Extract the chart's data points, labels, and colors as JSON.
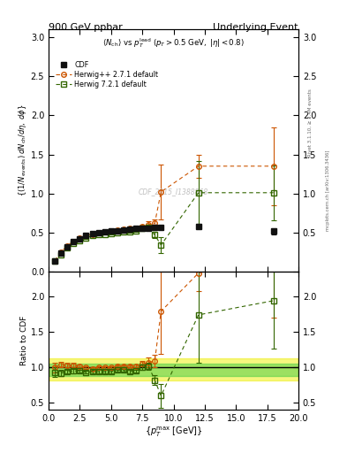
{
  "title_left": "900 GeV ppbar",
  "title_right": "Underlying Event",
  "watermark": "CDF_2015_I1388868",
  "rivet_label": "Rivet 3.1.10, ≥ 3.4M events",
  "arxiv_label": "mcplots.cern.ch [arXiv:1306.3436]",
  "ylabel_main": "((1/N_{events}) dN_{ch}/dη, dϕ)",
  "ylabel_ratio": "Ratio to CDF",
  "xlabel": "{p_{T}^{max} [GeV]}",
  "cdf_x": [
    0.5,
    1.0,
    1.5,
    2.0,
    2.5,
    3.0,
    3.5,
    4.0,
    4.5,
    5.0,
    5.5,
    6.0,
    6.5,
    7.0,
    7.5,
    8.0,
    8.5,
    9.0,
    12.0,
    18.0
  ],
  "cdf_y": [
    0.14,
    0.24,
    0.32,
    0.38,
    0.42,
    0.46,
    0.49,
    0.5,
    0.51,
    0.52,
    0.52,
    0.53,
    0.54,
    0.55,
    0.55,
    0.56,
    0.57,
    0.57,
    0.58,
    0.52
  ],
  "cdf_yerr_lo": [
    0.01,
    0.01,
    0.01,
    0.01,
    0.01,
    0.01,
    0.01,
    0.01,
    0.01,
    0.01,
    0.01,
    0.01,
    0.01,
    0.01,
    0.01,
    0.01,
    0.01,
    0.01,
    0.03,
    0.04
  ],
  "cdf_yerr_hi": [
    0.01,
    0.01,
    0.01,
    0.01,
    0.01,
    0.01,
    0.01,
    0.01,
    0.01,
    0.01,
    0.01,
    0.01,
    0.01,
    0.01,
    0.01,
    0.01,
    0.01,
    0.01,
    0.03,
    0.04
  ],
  "hpp_x": [
    0.5,
    1.0,
    1.5,
    2.0,
    2.5,
    3.0,
    3.5,
    4.0,
    4.5,
    5.0,
    5.5,
    6.0,
    6.5,
    7.0,
    7.5,
    8.0,
    8.5,
    9.0,
    12.0,
    18.0
  ],
  "hpp_y": [
    0.14,
    0.25,
    0.33,
    0.39,
    0.43,
    0.46,
    0.48,
    0.5,
    0.51,
    0.52,
    0.53,
    0.54,
    0.55,
    0.56,
    0.58,
    0.6,
    0.62,
    1.02,
    1.35,
    1.35
  ],
  "hpp_yerr_lo": [
    0.01,
    0.01,
    0.01,
    0.01,
    0.01,
    0.01,
    0.01,
    0.01,
    0.01,
    0.01,
    0.01,
    0.01,
    0.01,
    0.01,
    0.02,
    0.04,
    0.05,
    0.35,
    0.15,
    0.5
  ],
  "hpp_yerr_hi": [
    0.01,
    0.01,
    0.01,
    0.01,
    0.01,
    0.01,
    0.01,
    0.01,
    0.01,
    0.01,
    0.01,
    0.01,
    0.01,
    0.01,
    0.02,
    0.04,
    0.05,
    0.35,
    0.15,
    0.5
  ],
  "h72_x": [
    0.5,
    1.0,
    1.5,
    2.0,
    2.5,
    3.0,
    3.5,
    4.0,
    4.5,
    5.0,
    5.5,
    6.0,
    6.5,
    7.0,
    7.5,
    8.0,
    8.5,
    9.0,
    12.0,
    18.0
  ],
  "h72_y": [
    0.13,
    0.22,
    0.3,
    0.36,
    0.4,
    0.43,
    0.46,
    0.47,
    0.48,
    0.49,
    0.5,
    0.51,
    0.51,
    0.52,
    0.55,
    0.57,
    0.47,
    0.34,
    1.01,
    1.01
  ],
  "h72_yerr_lo": [
    0.01,
    0.01,
    0.01,
    0.01,
    0.01,
    0.01,
    0.01,
    0.01,
    0.01,
    0.01,
    0.01,
    0.01,
    0.01,
    0.01,
    0.02,
    0.03,
    0.04,
    0.1,
    0.4,
    0.35
  ],
  "h72_yerr_hi": [
    0.01,
    0.01,
    0.01,
    0.01,
    0.01,
    0.01,
    0.01,
    0.01,
    0.01,
    0.01,
    0.01,
    0.01,
    0.01,
    0.01,
    0.02,
    0.03,
    0.04,
    0.1,
    0.4,
    0.35
  ],
  "ratio_hpp_x": [
    0.5,
    1.0,
    1.5,
    2.0,
    2.5,
    3.0,
    3.5,
    4.0,
    4.5,
    5.0,
    5.5,
    6.0,
    6.5,
    7.0,
    7.5,
    8.0,
    8.5,
    9.0,
    12.0,
    18.0
  ],
  "ratio_hpp_y": [
    1.0,
    1.04,
    1.03,
    1.03,
    1.02,
    1.0,
    0.98,
    1.0,
    1.0,
    1.0,
    1.02,
    1.02,
    1.02,
    1.02,
    1.05,
    1.07,
    1.09,
    1.79,
    2.33,
    2.6
  ],
  "ratio_hpp_elo": [
    0.07,
    0.04,
    0.03,
    0.03,
    0.02,
    0.02,
    0.02,
    0.02,
    0.02,
    0.02,
    0.02,
    0.02,
    0.02,
    0.02,
    0.04,
    0.07,
    0.09,
    0.6,
    0.25,
    0.9
  ],
  "ratio_hpp_ehi": [
    0.07,
    0.04,
    0.03,
    0.03,
    0.02,
    0.02,
    0.02,
    0.02,
    0.02,
    0.02,
    0.02,
    0.02,
    0.02,
    0.02,
    0.04,
    0.07,
    0.09,
    0.6,
    0.25,
    0.9
  ],
  "ratio_h72_x": [
    0.5,
    1.0,
    1.5,
    2.0,
    2.5,
    3.0,
    3.5,
    4.0,
    4.5,
    5.0,
    5.5,
    6.0,
    6.5,
    7.0,
    7.5,
    8.0,
    8.5,
    9.0,
    12.0,
    18.0
  ],
  "ratio_h72_y": [
    0.93,
    0.92,
    0.94,
    0.95,
    0.95,
    0.93,
    0.94,
    0.94,
    0.94,
    0.94,
    0.96,
    0.96,
    0.94,
    0.95,
    1.0,
    1.02,
    0.82,
    0.6,
    1.74,
    1.94
  ],
  "ratio_h72_elo": [
    0.07,
    0.04,
    0.03,
    0.03,
    0.02,
    0.02,
    0.02,
    0.02,
    0.02,
    0.02,
    0.02,
    0.02,
    0.02,
    0.02,
    0.04,
    0.05,
    0.07,
    0.17,
    0.68,
    0.67
  ],
  "ratio_h72_ehi": [
    0.07,
    0.04,
    0.03,
    0.03,
    0.02,
    0.02,
    0.02,
    0.02,
    0.02,
    0.02,
    0.02,
    0.02,
    0.02,
    0.02,
    0.04,
    0.05,
    0.07,
    0.17,
    0.68,
    0.67
  ],
  "ylim_main": [
    0.0,
    3.1
  ],
  "ylim_ratio": [
    0.4,
    2.35
  ],
  "xlim": [
    0,
    20
  ],
  "yticks_main": [
    0.0,
    0.5,
    1.0,
    1.5,
    2.0,
    2.5,
    3.0
  ],
  "yticks_ratio": [
    0.5,
    1.0,
    1.5,
    2.0
  ],
  "band_yellow_lo": 0.82,
  "band_yellow_hi": 1.13,
  "band_green_lo": 0.88,
  "band_green_hi": 1.05,
  "band_x_split": 14.5,
  "color_cdf": "#111111",
  "color_hpp": "#cc5500",
  "color_h72": "#336600",
  "color_band_green": "#44cc44",
  "color_band_yellow": "#eeee00",
  "color_band_green_alpha": 0.5,
  "color_band_yellow_alpha": 0.5
}
